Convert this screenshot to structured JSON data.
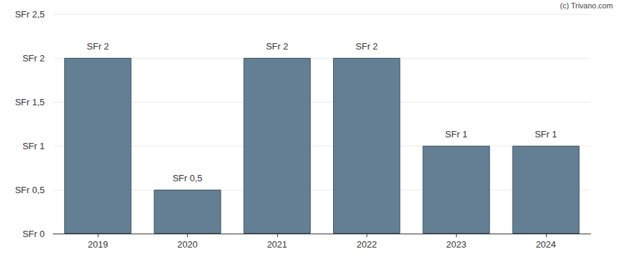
{
  "chart_data": {
    "type": "bar",
    "categories": [
      "2019",
      "2020",
      "2021",
      "2022",
      "2023",
      "2024"
    ],
    "values": [
      2,
      0.5,
      2,
      2,
      1,
      1
    ],
    "value_labels": [
      "SFr 2",
      "SFr 0,5",
      "SFr 2",
      "SFr 2",
      "SFr 1",
      "SFr 1"
    ],
    "color": "#647f93",
    "ylim": [
      0,
      2.5
    ],
    "yticks": [
      {
        "value": 0,
        "label": "SFr 0"
      },
      {
        "value": 0.5,
        "label": "SFr 0,5"
      },
      {
        "value": 1,
        "label": "SFr 1"
      },
      {
        "value": 1.5,
        "label": "SFr 1,5"
      },
      {
        "value": 2,
        "label": "SFr 2"
      },
      {
        "value": 2.5,
        "label": "SFr 2,5"
      }
    ],
    "grid": true,
    "data_labels": true,
    "annotations": [
      "(c) Trivano.com"
    ]
  }
}
